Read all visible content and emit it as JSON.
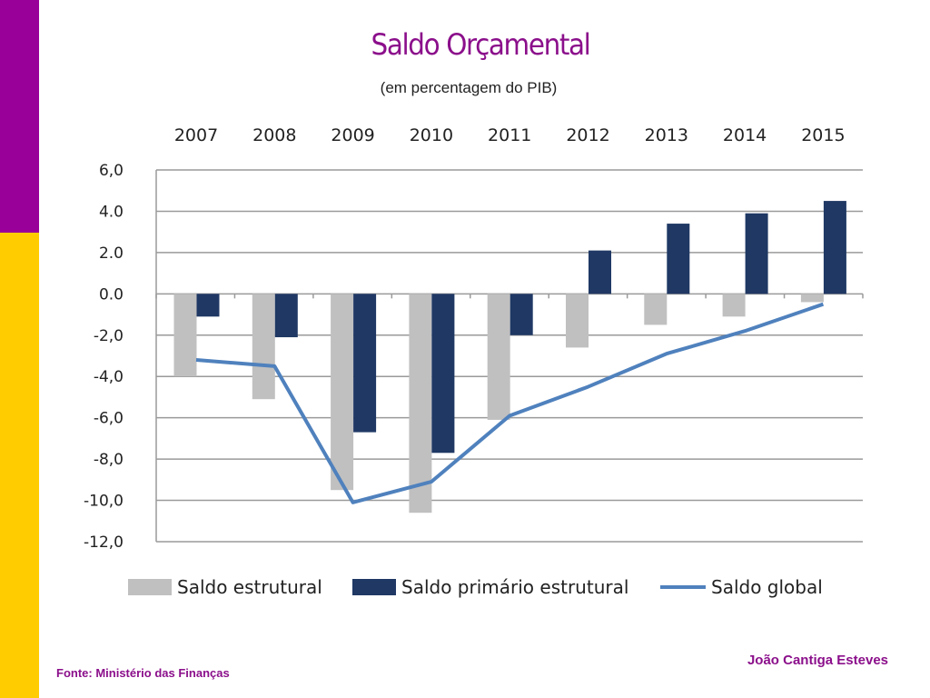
{
  "slide": {
    "title": "Saldo Orçamental",
    "subtitle": "(em percentagem do PIB)",
    "source_note": "Fonte: Ministério das Finanças",
    "author": "João Cantiga Esteves"
  },
  "colors": {
    "title_purple": "#8b0f8b",
    "side_purple": "#990099",
    "side_yellow": "#ffcc00",
    "footer_purple": "#8b0f8b",
    "grey_bar": "#c0c0c0",
    "navy_bar": "#1f3864",
    "blue_line": "#4f81bd",
    "grid": "#9a9a9a"
  },
  "chart_data": {
    "type": "bar",
    "categories": [
      "2007",
      "2008",
      "2009",
      "2010",
      "2011",
      "2012",
      "2013",
      "2014",
      "2015"
    ],
    "ylim": [
      -12,
      6
    ],
    "y_ticks": [
      "6,0",
      "4.0",
      "2.0",
      "0.0",
      "-2,0",
      "-4,0",
      "-6,0",
      "-8,0",
      "-10,0",
      "-12,0"
    ],
    "y_tick_values": [
      6,
      4,
      2,
      0,
      -2,
      -4,
      -6,
      -8,
      -10,
      -12
    ],
    "x_axis_position": "top",
    "grid": true,
    "legend_position": "bottom",
    "series": [
      {
        "name": "Saldo estrutural",
        "kind": "bar",
        "color": "#c0c0c0",
        "values": [
          -4.0,
          -5.1,
          -9.5,
          -10.6,
          -6.1,
          -2.6,
          -1.5,
          -1.1,
          -0.4
        ]
      },
      {
        "name": "Saldo primário estrutural",
        "kind": "bar",
        "color": "#1f3864",
        "values": [
          -1.1,
          -2.1,
          -6.7,
          -7.7,
          -2.0,
          2.1,
          3.4,
          3.9,
          4.5
        ]
      },
      {
        "name": "Saldo global",
        "kind": "line",
        "color": "#4f81bd",
        "values": [
          -3.2,
          -3.5,
          -10.1,
          -9.1,
          -5.9,
          -4.5,
          -2.9,
          -1.8,
          -0.5
        ]
      }
    ]
  }
}
